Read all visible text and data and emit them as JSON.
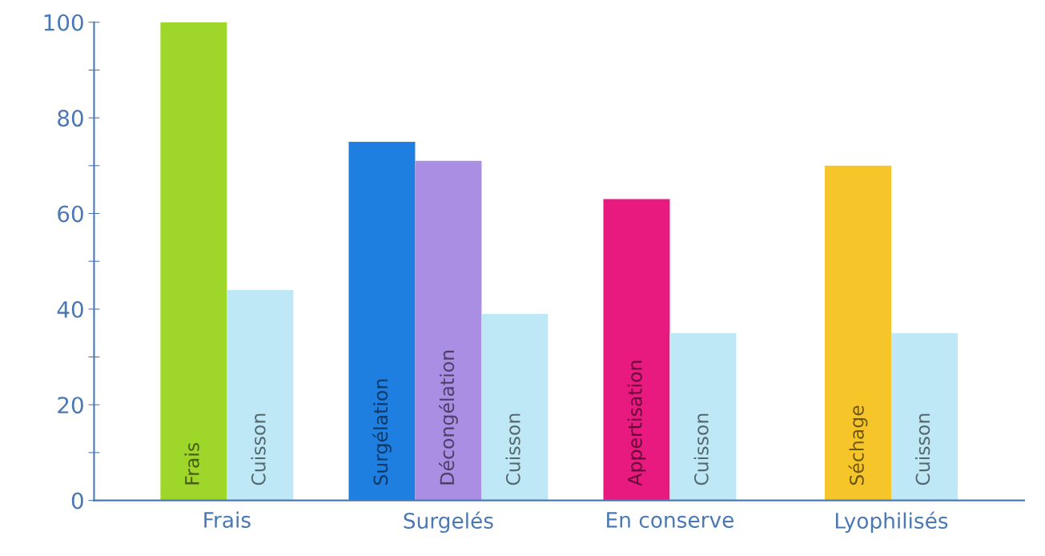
{
  "chart_data": {
    "type": "bar",
    "categories": [
      "Frais",
      "Surgelés",
      "En conserve",
      "Lyophilisés"
    ],
    "series": [
      {
        "values": [
          100,
          75,
          63,
          70
        ],
        "colors": [
          "#9fd62a",
          "#1f7fe0",
          "#e8197f",
          "#f5c52a"
        ],
        "value_labels": [
          "Frais",
          "Surgélation",
          "Appertisation",
          "Séchage"
        ]
      },
      {
        "values": [
          44,
          71,
          35,
          35
        ],
        "colors": [
          "#bfe8f7",
          "#a98ee3",
          "#bfe8f7",
          "#bfe8f7"
        ],
        "value_labels": [
          "Cuisson",
          "Décongélation",
          "Cuisson",
          "Cuisson"
        ]
      },
      {
        "values": [
          null,
          39,
          null,
          null
        ],
        "colors": [
          null,
          "#bfe8f7",
          null,
          null
        ],
        "value_labels": [
          null,
          "Cuisson",
          null,
          null
        ]
      }
    ],
    "ylim": [
      0,
      100
    ],
    "yticks": [
      0,
      {
        "value": 10,
        "label": null
      },
      20,
      {
        "value": 30,
        "label": null
      },
      40,
      {
        "value": 50,
        "label": null
      },
      60,
      {
        "value": 70,
        "label": null
      },
      80,
      {
        "value": 90,
        "label": null
      },
      100
    ],
    "grid": false,
    "legend": false
  }
}
